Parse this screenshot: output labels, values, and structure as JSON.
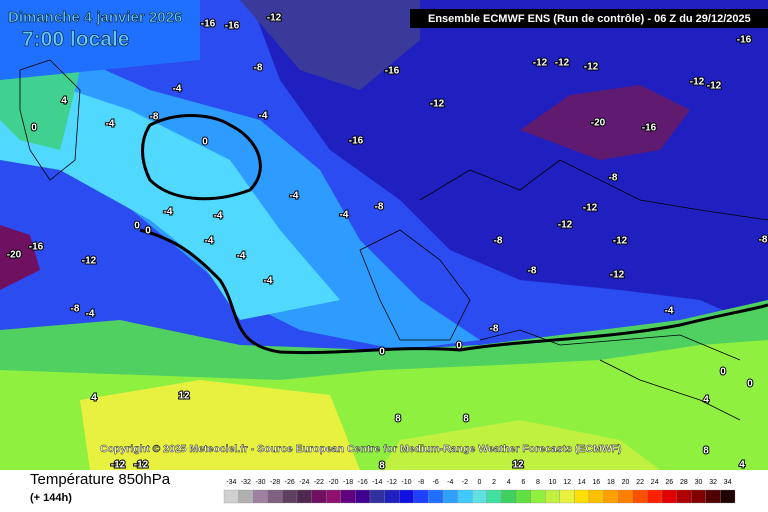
{
  "header": {
    "date": "Dimanche 4 janvier 2026",
    "time": "7:00 locale",
    "run": "Ensemble ECMWF ENS  (Run de contrôle)  -  06 Z du 29/12/2025",
    "copyright": "Copyright © 2025 Meteociel.fr - Source European Centre for Medium-Range Weather Forecasts (ECMWF)"
  },
  "footer": {
    "title": "Température 850hPa",
    "lead": "(+ 144h)"
  },
  "map_labels": [
    -16,
    -16,
    -12,
    -16,
    -8,
    -16,
    -12,
    -12,
    -12,
    -12,
    -12,
    -4,
    4,
    -8,
    -4,
    -12,
    -20,
    -16,
    -4,
    0,
    0,
    -16,
    -4,
    -4,
    -8,
    -8,
    -12,
    -4,
    -4,
    0,
    0,
    -16,
    -20,
    -12,
    -4,
    -4,
    -12,
    -8,
    -12,
    -8,
    -8,
    -12,
    -4,
    -8,
    -4,
    -8,
    -4,
    0,
    0,
    4,
    12,
    8,
    8,
    4,
    0,
    0,
    8,
    12,
    4,
    8,
    -12,
    -12
  ],
  "legend": {
    "ticks": [
      -34,
      -32,
      -30,
      -28,
      -26,
      -24,
      -22,
      -20,
      -18,
      -16,
      -14,
      -12,
      -10,
      -8,
      -6,
      -4,
      -2,
      0,
      2,
      4,
      6,
      8,
      10,
      12,
      14,
      16,
      18,
      20,
      22,
      24,
      26,
      28,
      30,
      32,
      34
    ],
    "colors": [
      "#d0d0d0",
      "#b0b0b0",
      "#a080a0",
      "#806080",
      "#604060",
      "#502850",
      "#701060",
      "#901070",
      "#600080",
      "#400090",
      "#3030a0",
      "#2020c0",
      "#1010e0",
      "#2040ff",
      "#2070ff",
      "#30a0ff",
      "#40c8ff",
      "#60e0e0",
      "#40e0a0",
      "#40d060",
      "#60e040",
      "#90f040",
      "#c0f040",
      "#e8f040",
      "#ffe000",
      "#ffc000",
      "#ffa000",
      "#ff8000",
      "#ff5000",
      "#ff2000",
      "#e00000",
      "#b00000",
      "#800000",
      "#500000",
      "#200000"
    ]
  }
}
